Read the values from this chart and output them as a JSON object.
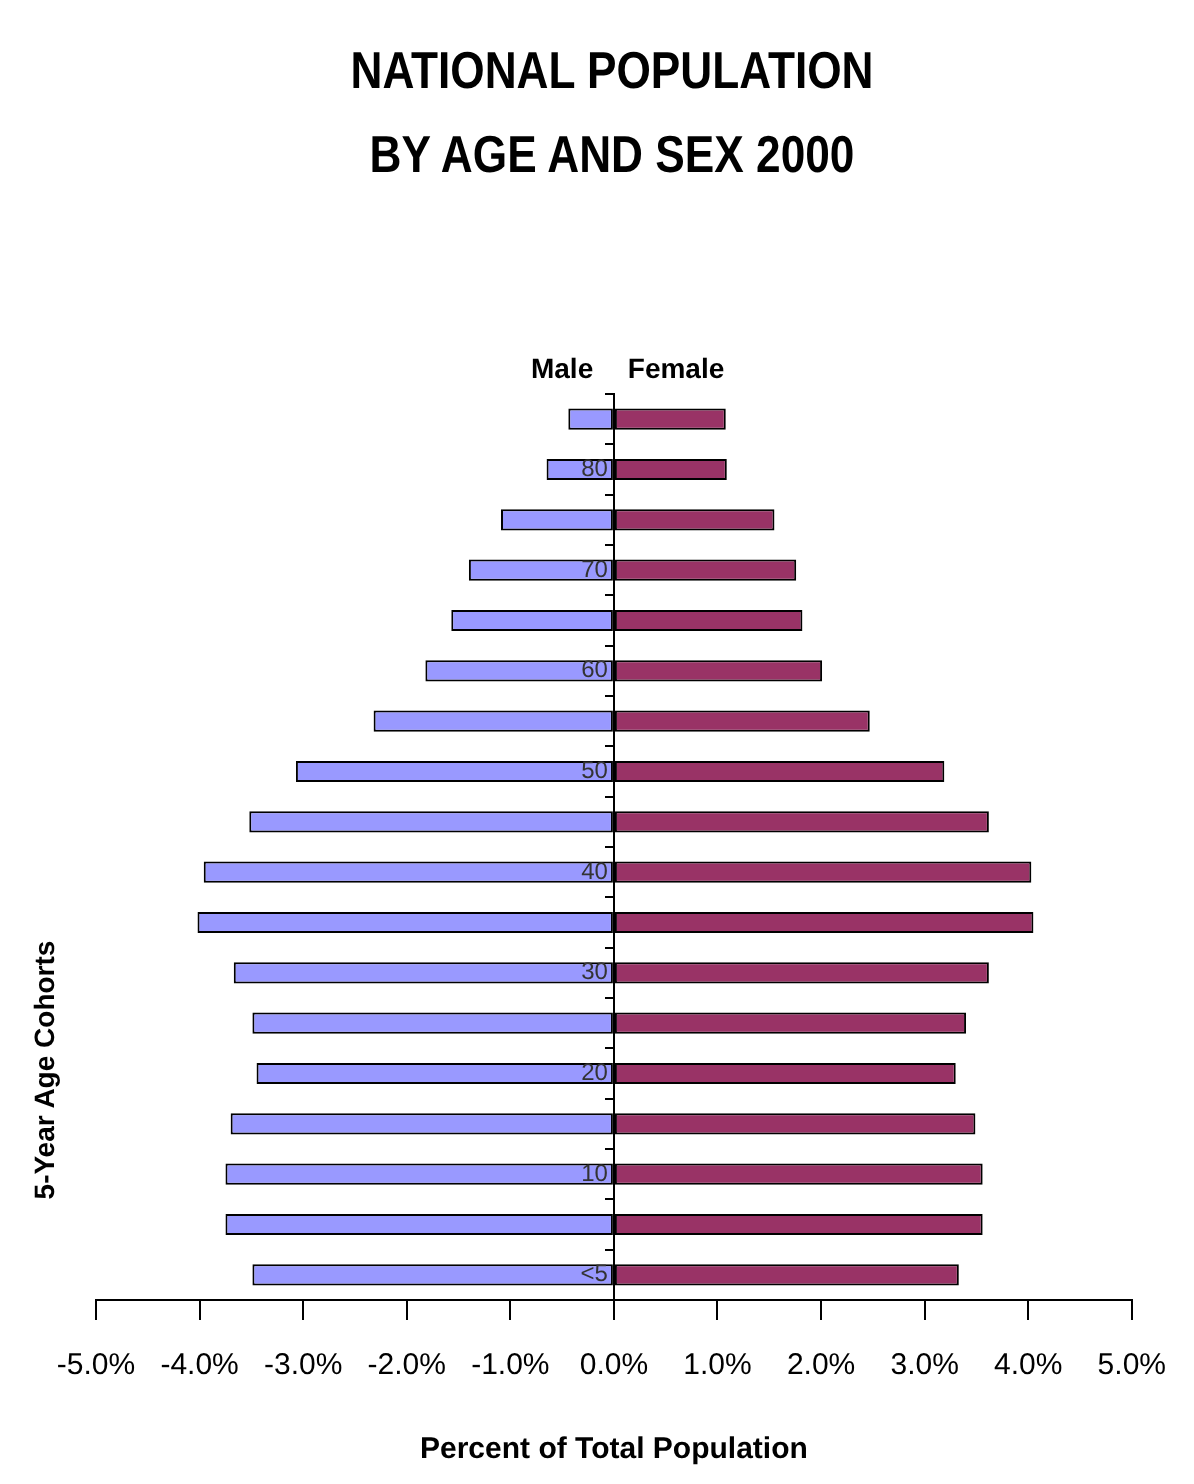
{
  "chart_data": {
    "type": "bar",
    "orientation": "horizontal",
    "stacked": true,
    "title": "NATIONAL POPULATION BY AGE AND SEX 2000",
    "xlabel": "Percent of Total Population",
    "ylabel": "5-Year Age Cohorts",
    "categories": [
      null,
      "80",
      null,
      "70",
      null,
      "60",
      null,
      "50",
      null,
      "40",
      null,
      "30",
      null,
      "20",
      null,
      "10",
      null,
      "<5"
    ],
    "series": [
      {
        "name": "Male",
        "color": "#9999ff",
        "values": [
          -0.44,
          -0.65,
          -1.09,
          -1.4,
          -1.57,
          -1.82,
          -2.32,
          -3.07,
          -3.52,
          -3.96,
          -4.02,
          -3.67,
          -3.49,
          -3.45,
          -3.7,
          -3.75,
          -3.75,
          -3.49
        ]
      },
      {
        "name": "Female",
        "color": "#993366",
        "values": [
          1.08,
          1.09,
          1.55,
          1.76,
          1.82,
          2.01,
          2.47,
          3.19,
          3.62,
          4.03,
          4.05,
          3.62,
          3.4,
          3.3,
          3.49,
          3.56,
          3.56,
          3.33
        ]
      }
    ],
    "xlim": [
      -5,
      5
    ],
    "xticks": [
      {
        "value": -5,
        "label": "-5.0%"
      },
      {
        "value": -4,
        "label": "-4.0%"
      },
      {
        "value": -3,
        "label": "-3.0%"
      },
      {
        "value": -2,
        "label": "-2.0%"
      },
      {
        "value": -1,
        "label": "-1.0%"
      },
      {
        "value": 0,
        "label": "0.0%"
      },
      {
        "value": 1,
        "label": "1.0%"
      },
      {
        "value": 2,
        "label": "2.0%"
      },
      {
        "value": 3,
        "label": "3.0%"
      },
      {
        "value": 4,
        "label": "4.0%"
      },
      {
        "value": 5,
        "label": "5.0%"
      }
    ],
    "grid": false,
    "legend": false
  }
}
